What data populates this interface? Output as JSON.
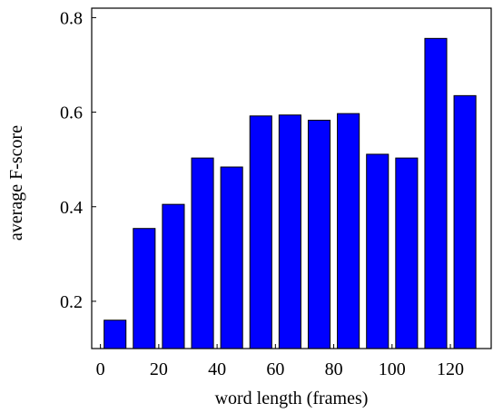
{
  "chart_data": {
    "type": "bar",
    "x": [
      5,
      15,
      25,
      35,
      45,
      55,
      65,
      75,
      85,
      95,
      105,
      115,
      125
    ],
    "values": [
      0.16,
      0.354,
      0.405,
      0.503,
      0.484,
      0.592,
      0.594,
      0.583,
      0.597,
      0.511,
      0.503,
      0.756,
      0.635
    ],
    "title": "",
    "xlabel": "word length (frames)",
    "ylabel": "average F-score",
    "xlim": [
      -3,
      134
    ],
    "ylim": [
      0.1,
      0.82
    ],
    "xticks": [
      0,
      20,
      40,
      60,
      80,
      100,
      120
    ],
    "yticks": [
      0.2,
      0.4,
      0.6,
      0.8
    ],
    "ytick_labels": [
      "0.2",
      "0.4",
      "0.6",
      "0.8"
    ],
    "bar_width": 7.5,
    "grid": false,
    "bar_color": "#0000ff"
  }
}
